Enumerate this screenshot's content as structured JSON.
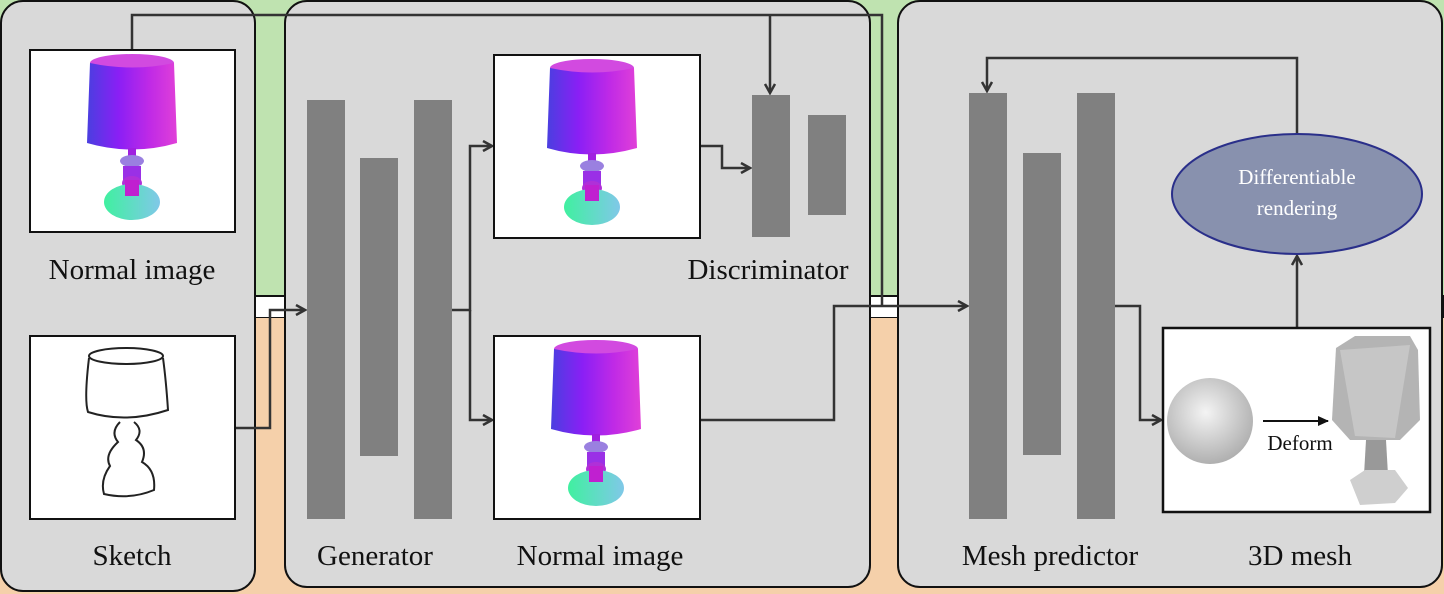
{
  "colors": {
    "top_band": "#bfe3b0",
    "bottom_band": "#f5d0aa",
    "panel": "#d9d9d9",
    "bar": "#808080",
    "ellipse": "#8891ae"
  },
  "left_panel": {
    "normal_image_label": "Normal image",
    "sketch_label": "Sketch"
  },
  "middle_panel": {
    "generator_label": "Generator",
    "normal_image_label": "Normal image",
    "discriminator_label": "Discriminator"
  },
  "right_panel": {
    "mesh_predictor_label": "Mesh predictor",
    "mesh_label": "3D mesh",
    "rendering_line1": "Differentiable",
    "rendering_line2": "rendering",
    "deform_label": "Deform"
  }
}
